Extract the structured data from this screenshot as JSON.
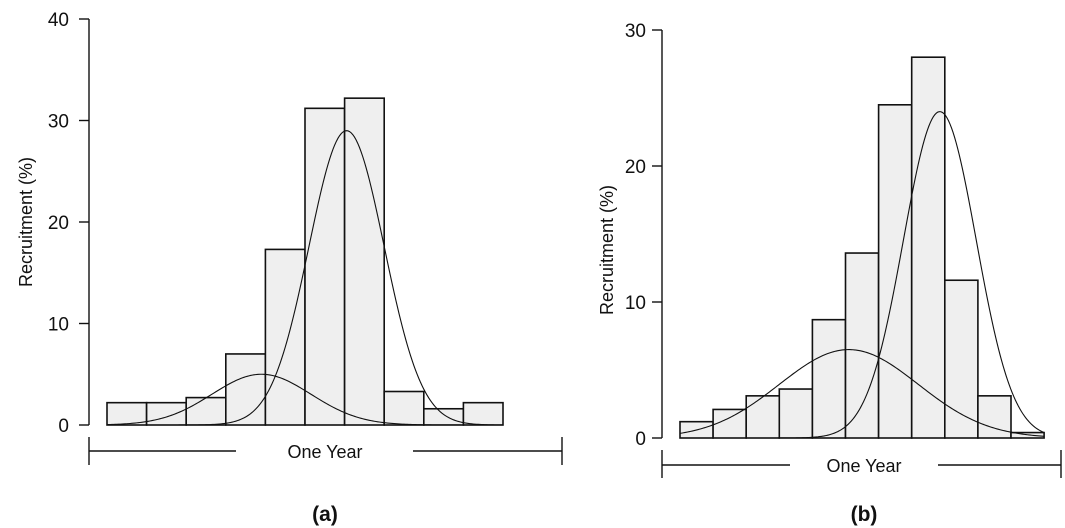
{
  "chart_data": [
    {
      "type": "bar",
      "panel_label": "(a)",
      "ylabel": "Recruitment (%)",
      "xlabel": "",
      "x_span_label": "One Year",
      "ylim": [
        0,
        40
      ],
      "yticks": [
        0,
        10,
        20,
        30,
        40
      ],
      "values": [
        2.2,
        2.2,
        2.7,
        7.0,
        17.3,
        31.2,
        32.2,
        3.3,
        1.6,
        2.2
      ],
      "curves": [
        {
          "amplitude": 5.0,
          "center": 3.9,
          "sigma": 1.25
        },
        {
          "amplitude": 29.0,
          "center": 6.05,
          "sigma": 0.95
        }
      ],
      "grid": false
    },
    {
      "type": "bar",
      "panel_label": "(b)",
      "ylabel": "Recruitment (%)",
      "xlabel": "",
      "x_span_label": "One Year",
      "ylim": [
        0,
        30
      ],
      "yticks": [
        0,
        10,
        20,
        30
      ],
      "values": [
        1.2,
        2.1,
        3.1,
        3.6,
        8.7,
        13.6,
        24.5,
        28.0,
        11.6,
        3.1,
        0.4
      ],
      "curves": [
        {
          "amplitude": 6.5,
          "center": 5.1,
          "sigma": 2.1
        },
        {
          "amplitude": 24.0,
          "center": 7.85,
          "sigma": 1.1
        }
      ],
      "grid": false
    }
  ]
}
